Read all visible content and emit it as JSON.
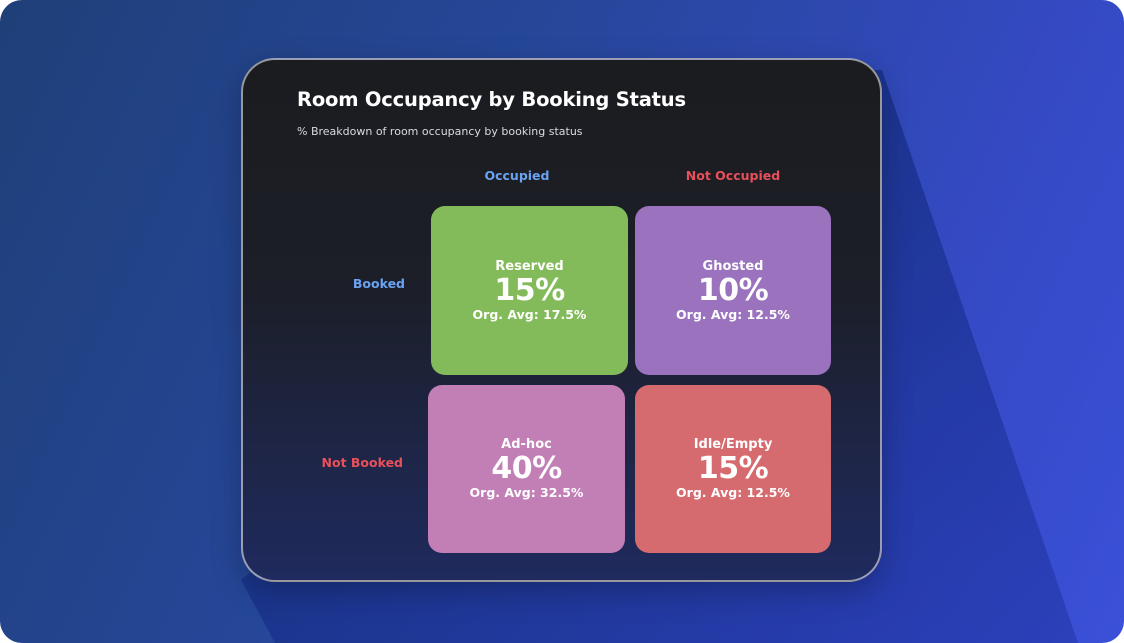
{
  "chart_data": {
    "type": "table",
    "title": "Room Occupancy by Booking Status",
    "subtitle": "% Breakdown of room occupancy by booking status",
    "columns": [
      "Occupied",
      "Not Occupied"
    ],
    "rows": [
      "Booked",
      "Not Booked"
    ],
    "column_colors": [
      "#6aa3f2",
      "#e8505a"
    ],
    "row_colors": [
      "#6aa3f2",
      "#e8505a"
    ],
    "cells": [
      {
        "label": "Reserved",
        "value": "15%",
        "percent": 15,
        "avg": "Org. Avg: 17.5%",
        "avg_percent": 17.5,
        "color": "#84bb5a",
        "row": "Booked",
        "column": "Occupied"
      },
      {
        "label": "Ghosted",
        "value": "10%",
        "percent": 10,
        "avg": "Org. Avg: 12.5%",
        "avg_percent": 12.5,
        "color": "#9a72bd",
        "row": "Booked",
        "column": "Not Occupied"
      },
      {
        "label": "Ad-hoc",
        "value": "40%",
        "percent": 40,
        "avg": "Org. Avg: 32.5%",
        "avg_percent": 32.5,
        "color": "#c17fb6",
        "row": "Not Booked",
        "column": "Occupied"
      },
      {
        "label": "Idle/Empty",
        "value": "15%",
        "percent": 15,
        "avg": "Org. Avg: 12.5%",
        "avg_percent": 12.5,
        "color": "#d66b6f",
        "row": "Not Booked",
        "column": "Not Occupied"
      }
    ]
  }
}
